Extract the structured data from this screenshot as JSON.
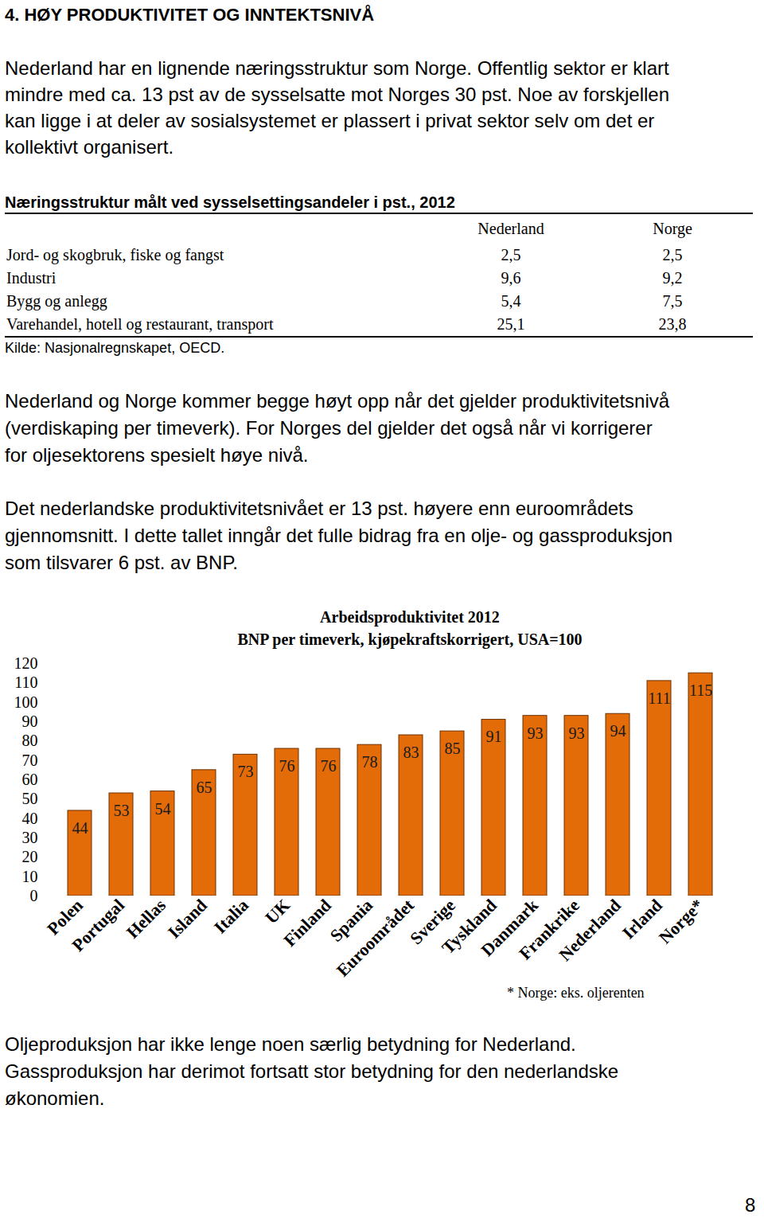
{
  "heading": "4. HØY PRODUKTIVITET OG INNTEKTSNIVÅ",
  "paragraphs_top": [
    {
      "lines": [
        "Nederland har en lignende næringsstruktur som Norge. Offentlig sektor er klart",
        "mindre med ca. 13 pst av de sysselsatte mot Norges 30 pst. Noe av forskjellen",
        "kan ligge i at deler av sosialsystemet er plassert i privat sektor selv om det er",
        "kollektivt organisert."
      ]
    }
  ],
  "table": {
    "title": "Næringsstruktur målt ved sysselsettingsandeler i pst., 2012",
    "columns": [
      "Nederland",
      "Norge"
    ],
    "rows": [
      [
        "Jord- og skogbruk, fiske og fangst",
        "2,5",
        "2,5"
      ],
      [
        "Industri",
        "9,6",
        "9,2"
      ],
      [
        "Bygg og anlegg",
        "5,4",
        "7,5"
      ],
      [
        "Varehandel, hotell og restaurant, transport",
        "25,1",
        "23,8"
      ]
    ],
    "source": "Kilde: Nasjonalregnskapet, OECD."
  },
  "paragraphs_middle": [
    {
      "lines": [
        "Nederland og Norge kommer begge høyt opp når det gjelder produktivitetsnivå",
        "(verdiskaping per timeverk). For Norges del gjelder det også når vi korrigerer",
        "for oljesektorens spesielt høye nivå."
      ]
    },
    {
      "lines": [
        "Det nederlandske produktivitetsnivået er 13 pst. høyere enn euroområdets",
        "gjennomsnitt. I dette tallet inngår det fulle bidrag fra en olje- og gassproduksjon",
        "som tilsvarer 6 pst. av BNP."
      ]
    }
  ],
  "chart_data": {
    "type": "bar",
    "title": "Arbeidsproduktivitet 2012",
    "subtitle": "BNP per timeverk, kjøpekraftskorrigert, USA=100",
    "categories": [
      "Polen",
      "Portugal",
      "Hellas",
      "Island",
      "Italia",
      "UK",
      "Finland",
      "Spania",
      "Euroområdet",
      "Sverige",
      "Tyskland",
      "Danmark",
      "Frankrike",
      "Nederland",
      "Irland",
      "Norge*"
    ],
    "values": [
      44,
      53,
      54,
      65,
      73,
      76,
      76,
      78,
      83,
      85,
      91,
      93,
      93,
      94,
      111,
      115
    ],
    "color": "#e36c09",
    "ylim": [
      0,
      120
    ],
    "yticks": [
      0,
      10,
      20,
      30,
      40,
      50,
      60,
      70,
      80,
      90,
      100,
      110,
      120
    ],
    "grid": false,
    "data_labels": true,
    "footnote": "* Norge: eks. oljerenten"
  },
  "paragraphs_bottom": [
    {
      "lines": [
        "Oljeproduksjon har ikke lenge noen særlig betydning for Nederland.",
        "Gassproduksjon har derimot fortsatt stor betydning for den nederlandske",
        "økonomien."
      ]
    }
  ],
  "page_number": "8"
}
